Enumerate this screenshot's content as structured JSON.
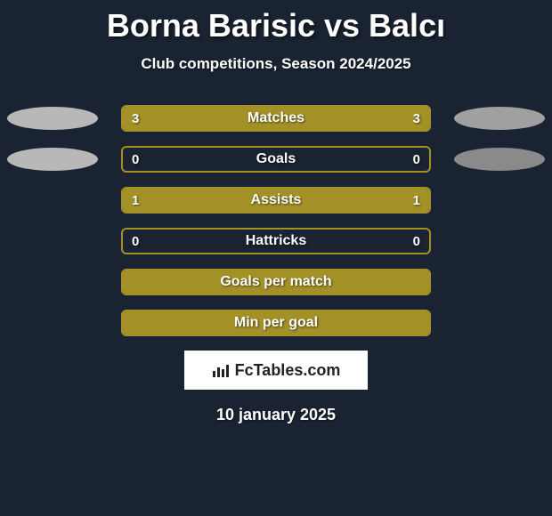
{
  "title": "Borna Barisic vs Balcı",
  "subtitle": "Club competitions, Season 2024/2025",
  "date": "10 january 2025",
  "logo_text": "FcTables.com",
  "colors": {
    "background": "#1a2332",
    "bar_border": "#a39128",
    "bar_fill": "#a39128",
    "badge_gray": "#a0a0a0",
    "text": "#ffffff"
  },
  "max_value": 3,
  "rows": [
    {
      "label": "Matches",
      "left_val": "3",
      "right_val": "3",
      "left_fill_pct": 50,
      "right_fill_pct": 50,
      "show_badges": true,
      "badge_left_color": "#b8b8b8",
      "badge_right_color": "#a0a0a0"
    },
    {
      "label": "Goals",
      "left_val": "0",
      "right_val": "0",
      "left_fill_pct": 0,
      "right_fill_pct": 0,
      "show_badges": true,
      "badge_left_color": "#b8b8b8",
      "badge_right_color": "#8a8a8a"
    },
    {
      "label": "Assists",
      "left_val": "1",
      "right_val": "1",
      "left_fill_pct": 50,
      "right_fill_pct": 50,
      "show_badges": false
    },
    {
      "label": "Hattricks",
      "left_val": "0",
      "right_val": "0",
      "left_fill_pct": 0,
      "right_fill_pct": 0,
      "show_badges": false
    },
    {
      "label": "Goals per match",
      "left_val": "",
      "right_val": "",
      "left_fill_pct": 50,
      "right_fill_pct": 50,
      "show_badges": false
    },
    {
      "label": "Min per goal",
      "left_val": "",
      "right_val": "",
      "left_fill_pct": 50,
      "right_fill_pct": 50,
      "show_badges": false
    }
  ]
}
